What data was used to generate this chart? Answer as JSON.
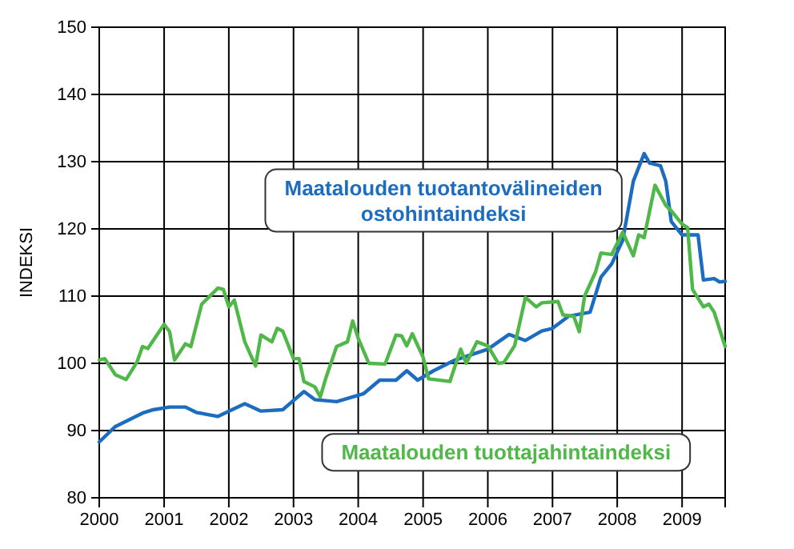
{
  "chart_data": {
    "type": "line",
    "ylabel": "INDEKSI",
    "ylim": [
      80,
      150
    ],
    "yticks": [
      80,
      90,
      100,
      110,
      120,
      130,
      140,
      150
    ],
    "xlim": [
      "2000-01",
      "2009-09"
    ],
    "xticks": [
      "2000",
      "2001",
      "2002",
      "2003",
      "2004",
      "2005",
      "2006",
      "2007",
      "2008",
      "2009"
    ],
    "grid": true,
    "legend": false,
    "series": [
      {
        "name": "Maatalouden tuotantovälineiden ostohintaindeksi",
        "color": "#1c6cc0",
        "x": [
          "2000-01",
          "2000-04",
          "2000-09",
          "2000-11",
          "2001-02",
          "2001-05",
          "2001-07",
          "2001-11",
          "2002-04",
          "2002-07",
          "2002-11",
          "2003-03",
          "2003-05",
          "2003-09",
          "2004-02",
          "2004-05",
          "2004-08",
          "2004-10",
          "2004-12",
          "2005-03",
          "2005-07",
          "2005-10",
          "2006-01",
          "2006-05",
          "2006-08",
          "2006-11",
          "2007-01",
          "2007-04",
          "2007-08",
          "2007-10",
          "2007-12",
          "2008-02",
          "2008-04",
          "2008-06",
          "2008-07",
          "2008-09",
          "2008-10",
          "2008-11",
          "2009-01",
          "2009-04",
          "2009-05",
          "2009-07",
          "2009-08",
          "2009-09"
        ],
        "values": [
          88.3,
          90.6,
          92.6,
          93.1,
          93.5,
          93.5,
          92.7,
          92.1,
          94.0,
          92.9,
          93.1,
          95.8,
          94.6,
          94.3,
          95.5,
          97.5,
          97.5,
          98.9,
          97.5,
          98.9,
          100.5,
          101.3,
          102.1,
          104.3,
          103.4,
          104.8,
          105.2,
          107.0,
          107.6,
          112.8,
          114.8,
          118.3,
          127.1,
          131.2,
          129.8,
          129.4,
          127.1,
          121.1,
          119.1,
          119.1,
          112.4,
          112.6,
          112.1,
          112.2
        ]
      },
      {
        "name": "Maatalouden tuottajahintaindeksi",
        "color": "#50b848",
        "x": [
          "2000-01",
          "2000-02",
          "2000-04",
          "2000-06",
          "2000-08",
          "2000-09",
          "2000-10",
          "2001-01",
          "2001-02",
          "2001-03",
          "2001-05",
          "2001-06",
          "2001-08",
          "2001-11",
          "2001-12",
          "2002-01",
          "2002-02",
          "2002-04",
          "2002-06",
          "2002-07",
          "2002-09",
          "2002-10",
          "2002-11",
          "2003-01",
          "2003-02",
          "2003-03",
          "2003-05",
          "2003-06",
          "2003-07",
          "2003-09",
          "2003-11",
          "2003-12",
          "2004-01",
          "2004-03",
          "2004-06",
          "2004-08",
          "2004-09",
          "2004-10",
          "2004-11",
          "2005-01",
          "2005-02",
          "2005-06",
          "2005-08",
          "2005-09",
          "2005-11",
          "2006-01",
          "2006-03",
          "2006-04",
          "2006-06",
          "2006-08",
          "2006-10",
          "2006-11",
          "2007-02",
          "2007-03",
          "2007-05",
          "2007-06",
          "2007-07",
          "2007-09",
          "2007-10",
          "2007-12",
          "2008-02",
          "2008-04",
          "2008-05",
          "2008-06",
          "2008-08",
          "2008-10",
          "2008-11",
          "2009-01",
          "2009-02",
          "2009-03",
          "2009-05",
          "2009-06",
          "2009-07",
          "2009-09"
        ],
        "values": [
          100.5,
          100.7,
          98.3,
          97.6,
          100.2,
          102.5,
          102.2,
          105.8,
          104.7,
          100.5,
          102.9,
          102.5,
          108.8,
          111.2,
          111.0,
          108.4,
          109.4,
          103.2,
          99.6,
          104.2,
          103.2,
          105.2,
          104.8,
          100.7,
          100.7,
          97.3,
          96.5,
          95.0,
          97.7,
          102.5,
          103.2,
          106.3,
          103.7,
          100.0,
          99.9,
          104.2,
          104.1,
          102.6,
          104.4,
          100.9,
          97.7,
          97.3,
          102.1,
          100.0,
          103.2,
          102.6,
          100.0,
          100.1,
          102.6,
          109.8,
          108.4,
          109.0,
          109.2,
          107.2,
          107.0,
          104.7,
          110.0,
          113.6,
          116.4,
          116.2,
          119.5,
          116.0,
          119.1,
          118.7,
          126.5,
          123.5,
          122.7,
          120.7,
          120.2,
          111.0,
          108.4,
          108.8,
          107.6,
          102.5
        ]
      }
    ]
  }
}
